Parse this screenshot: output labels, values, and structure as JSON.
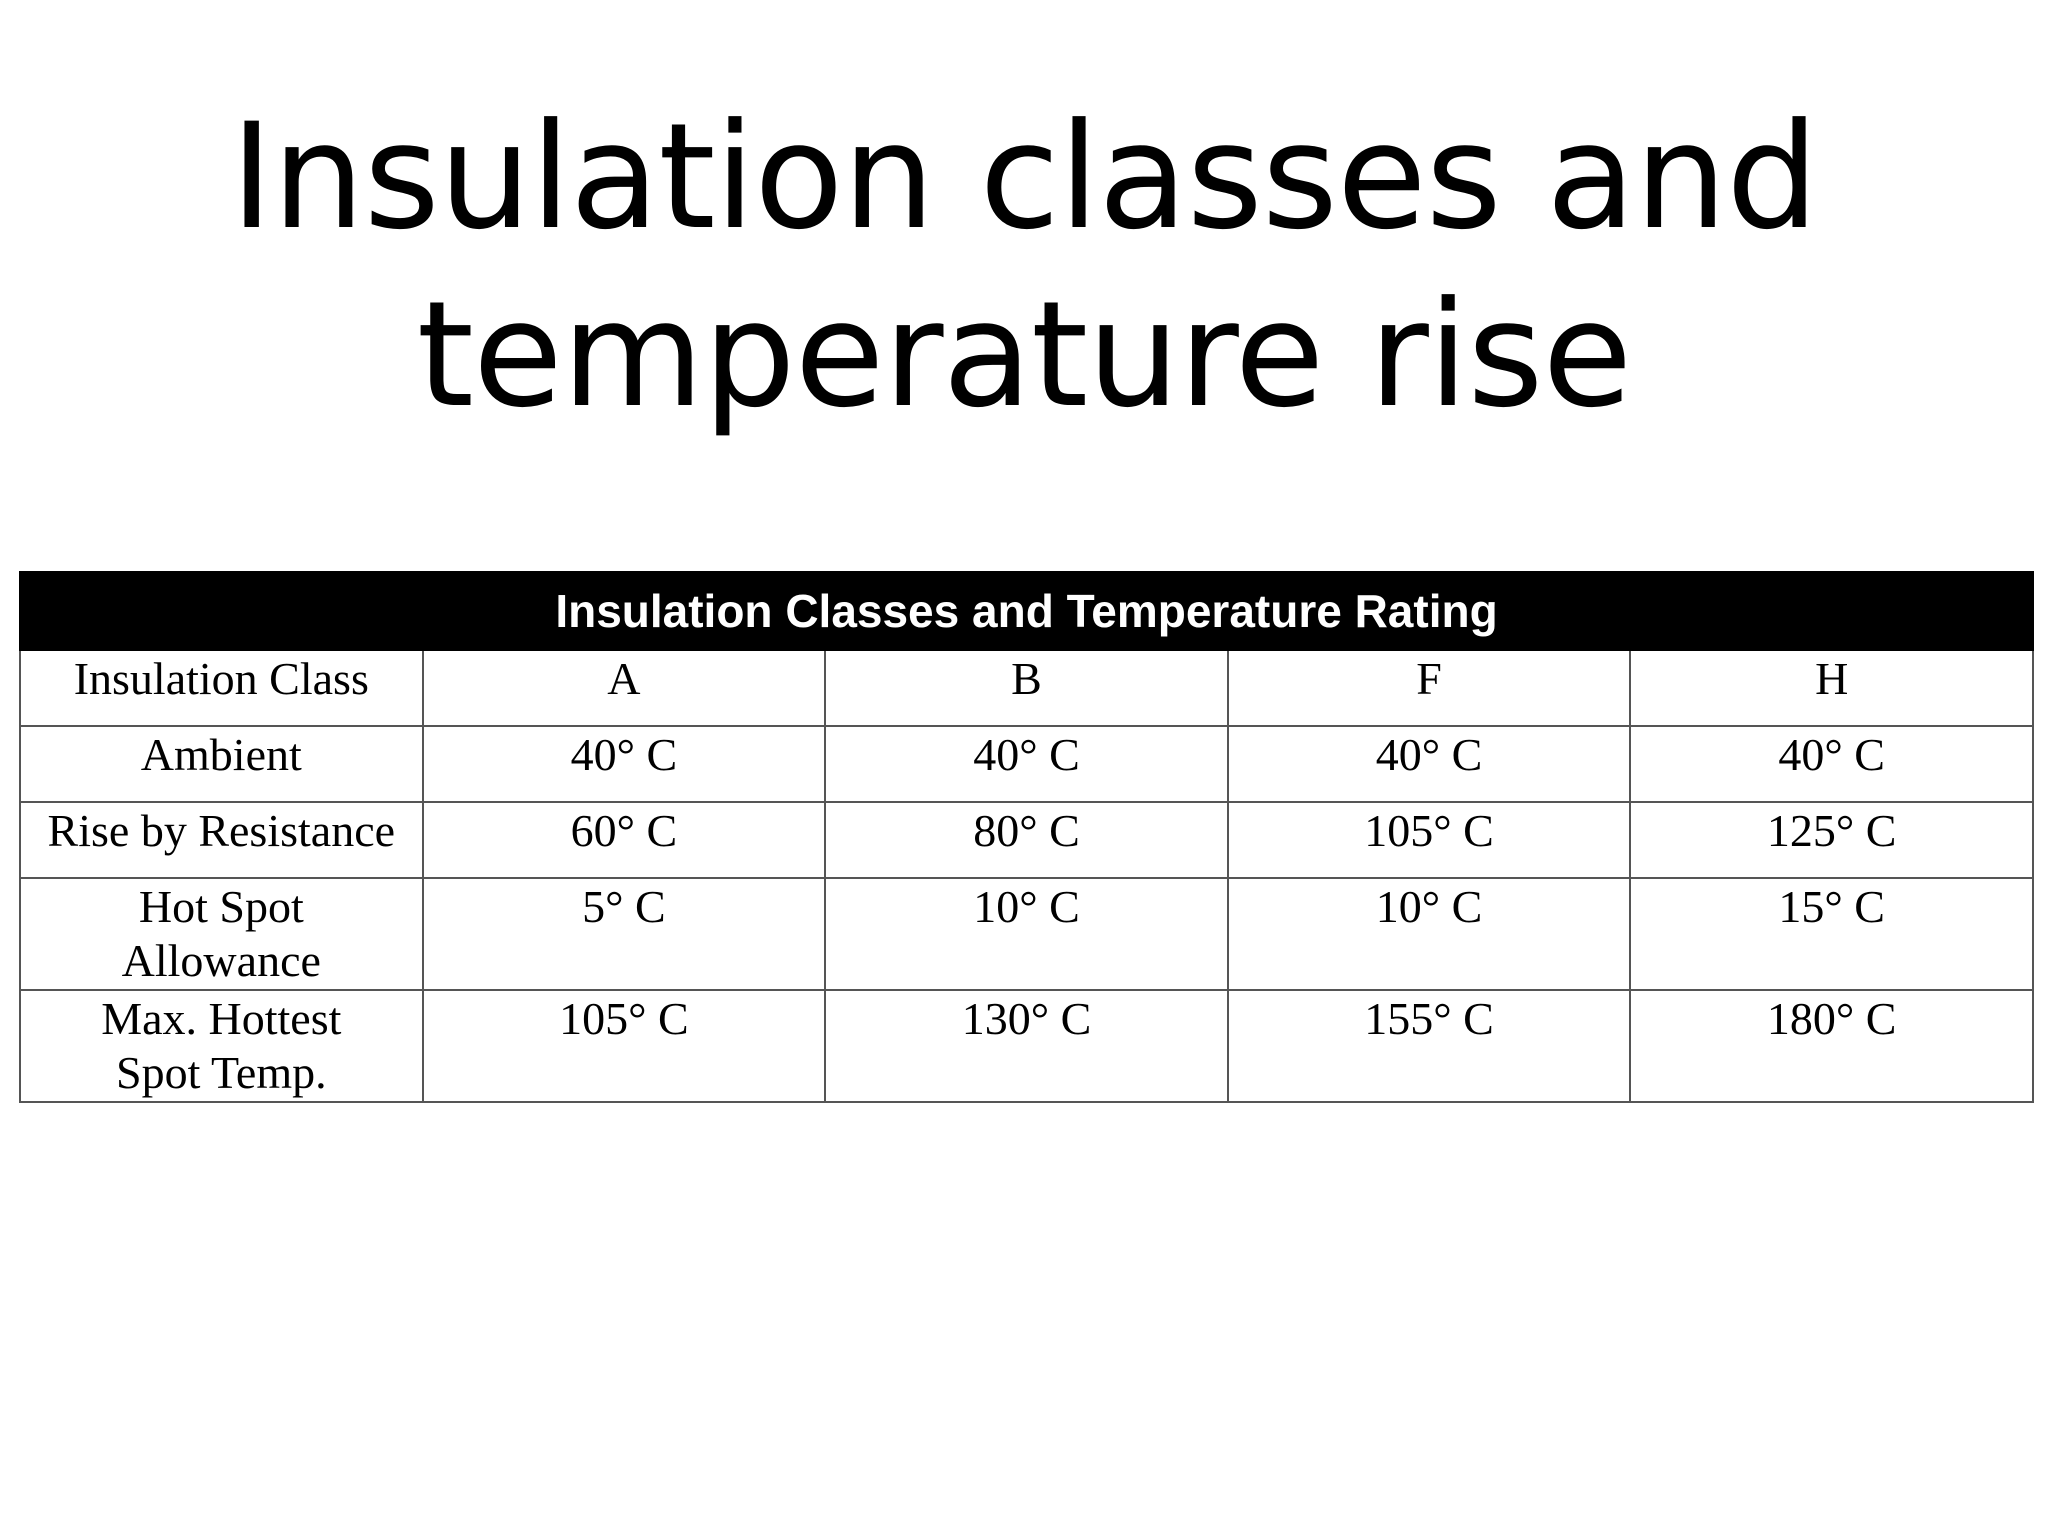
{
  "slide": {
    "title_line1": "Insulation classes and",
    "title_line2": "temperature rise"
  },
  "table": {
    "caption": "Insulation Classes and Temperature Rating",
    "rows": [
      {
        "label": "Insulation Class",
        "values": [
          "A",
          "B",
          "F",
          "H"
        ]
      },
      {
        "label": "Ambient",
        "values": [
          "40° C",
          "40° C",
          "40° C",
          "40° C"
        ]
      },
      {
        "label": "Rise by Resistance",
        "values": [
          "60° C",
          "80° C",
          "105° C",
          "125° C"
        ]
      },
      {
        "label_line1": "Hot Spot",
        "label_line2": "Allowance",
        "values": [
          "5° C",
          "10° C",
          "10° C",
          "15° C"
        ]
      },
      {
        "label_line1": "Max. Hottest",
        "label_line2": "Spot Temp.",
        "values": [
          "105° C",
          "130° C",
          "155° C",
          "180° C"
        ]
      }
    ]
  }
}
